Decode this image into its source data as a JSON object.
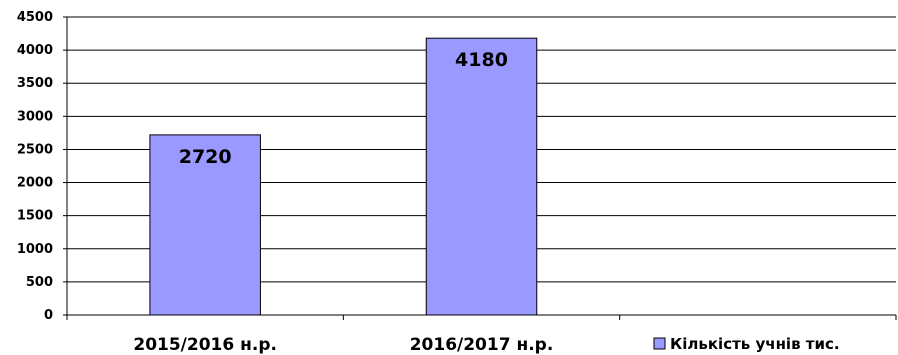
{
  "chart_data": {
    "type": "bar",
    "categories": [
      "2015/2016 н.р.",
      "2016/2017 н.р."
    ],
    "series": [
      {
        "name": "Кількість учнів тис.",
        "values": [
          2720,
          4180
        ],
        "color": "#9999ff"
      }
    ],
    "ylim": [
      0,
      4500
    ],
    "yticks": [
      0,
      500,
      1000,
      1500,
      2000,
      2500,
      3000,
      3500,
      4000,
      4500
    ],
    "grid": true,
    "legend_position": "bottom-right",
    "category_slots": 3
  }
}
